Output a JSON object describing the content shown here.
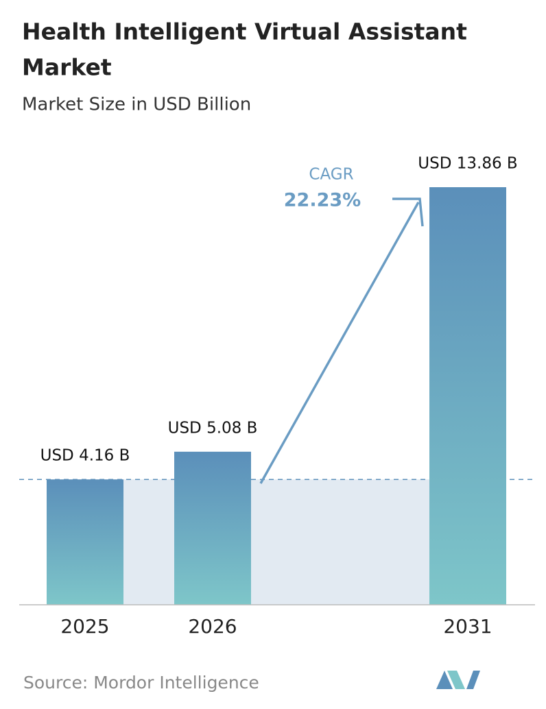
{
  "chart_data": {
    "type": "bar",
    "title": [
      "Health Intelligent Virtual Assistant",
      "Market"
    ],
    "subtitle": "Market Size in USD Billion",
    "categories": [
      "2025",
      "2026",
      "2031"
    ],
    "values": [
      4.16,
      5.08,
      13.86
    ],
    "value_labels": [
      "USD 4.16 B",
      "USD 5.08 B",
      "USD 13.86 B"
    ],
    "color": [
      "#5b8fba",
      "#7ec6c9"
    ],
    "annotation": {
      "label": "CAGR",
      "value": "22.23%"
    },
    "source": "Source: Mordor Intelligence"
  }
}
